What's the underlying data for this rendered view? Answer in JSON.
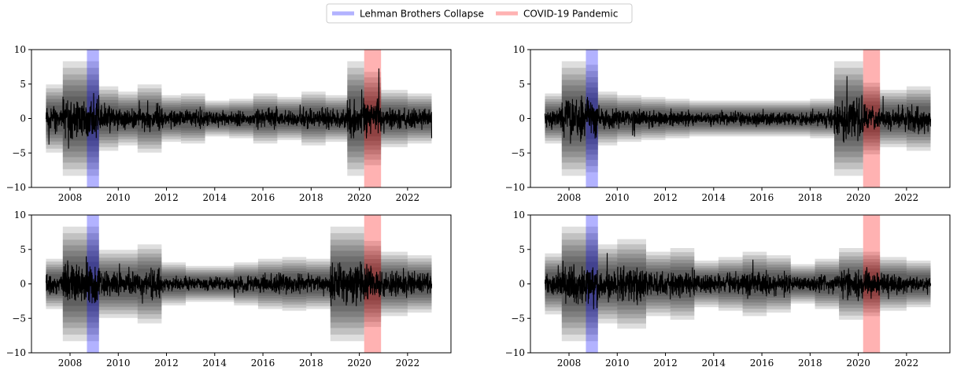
{
  "legend": {
    "placement": "top-center",
    "entries": [
      {
        "label": "Lehman Brothers Collapse",
        "color": "#0000ff",
        "alpha": 0.3
      },
      {
        "label": "COVID-19 Pandemic",
        "color": "#ff0000",
        "alpha": 0.3
      }
    ]
  },
  "chart_data": [
    {
      "type": "line",
      "panel": "top-left",
      "xlim": [
        2006.4,
        2023.8
      ],
      "ylim": [
        -10,
        10
      ],
      "xticks": [
        "2008",
        "2010",
        "2012",
        "2014",
        "2016",
        "2018",
        "2020",
        "2022"
      ],
      "yticks": [
        "10",
        "5",
        "0",
        "−5",
        "−10"
      ],
      "x_range": [
        2007.0,
        2023.0
      ],
      "grid": false,
      "events": [
        {
          "name": "Lehman Brothers Collapse",
          "start": 2008.7,
          "end": 2009.2,
          "color": "#0000ff"
        },
        {
          "name": "COVID-19 Pandemic",
          "start": 2020.2,
          "end": 2020.9,
          "color": "#ff0000"
        }
      ],
      "volatility_regimes": [
        {
          "start": 2007.0,
          "end": 2007.7,
          "scale": 1.9
        },
        {
          "start": 2007.7,
          "end": 2008.7,
          "scale": 3.2
        },
        {
          "start": 2008.7,
          "end": 2009.2,
          "scale": 3.2
        },
        {
          "start": 2009.2,
          "end": 2010.0,
          "scale": 1.8
        },
        {
          "start": 2010.0,
          "end": 2010.8,
          "scale": 1.5
        },
        {
          "start": 2010.8,
          "end": 2011.8,
          "scale": 1.9
        },
        {
          "start": 2011.8,
          "end": 2012.6,
          "scale": 1.3
        },
        {
          "start": 2012.6,
          "end": 2013.6,
          "scale": 1.4
        },
        {
          "start": 2013.6,
          "end": 2014.6,
          "scale": 1.0
        },
        {
          "start": 2014.6,
          "end": 2015.6,
          "scale": 1.1
        },
        {
          "start": 2015.6,
          "end": 2016.6,
          "scale": 1.4
        },
        {
          "start": 2016.6,
          "end": 2017.6,
          "scale": 1.2
        },
        {
          "start": 2017.6,
          "end": 2018.6,
          "scale": 1.5
        },
        {
          "start": 2018.6,
          "end": 2019.5,
          "scale": 1.3
        },
        {
          "start": 2019.5,
          "end": 2020.2,
          "scale": 3.2
        },
        {
          "start": 2020.2,
          "end": 2020.9,
          "scale": 2.6
        },
        {
          "start": 2020.9,
          "end": 2022.0,
          "scale": 1.6
        },
        {
          "start": 2022.0,
          "end": 2023.0,
          "scale": 1.4
        }
      ]
    },
    {
      "type": "line",
      "panel": "top-right",
      "xlim": [
        2006.4,
        2023.8
      ],
      "ylim": [
        -10,
        10
      ],
      "xticks": [
        "2008",
        "2010",
        "2012",
        "2014",
        "2016",
        "2018",
        "2020",
        "2022"
      ],
      "yticks": [
        "10",
        "5",
        "0",
        "−5",
        "−10"
      ],
      "x_range": [
        2007.0,
        2023.0
      ],
      "grid": false,
      "events": [
        {
          "name": "Lehman Brothers Collapse",
          "start": 2008.7,
          "end": 2009.2,
          "color": "#0000ff"
        },
        {
          "name": "COVID-19 Pandemic",
          "start": 2020.2,
          "end": 2020.9,
          "color": "#ff0000"
        }
      ],
      "volatility_regimes": [
        {
          "start": 2007.0,
          "end": 2007.7,
          "scale": 1.4
        },
        {
          "start": 2007.7,
          "end": 2008.7,
          "scale": 3.2
        },
        {
          "start": 2008.7,
          "end": 2009.2,
          "scale": 3.0
        },
        {
          "start": 2009.2,
          "end": 2010.0,
          "scale": 1.5
        },
        {
          "start": 2010.0,
          "end": 2011.0,
          "scale": 1.3
        },
        {
          "start": 2011.0,
          "end": 2012.0,
          "scale": 1.2
        },
        {
          "start": 2012.0,
          "end": 2013.0,
          "scale": 1.1
        },
        {
          "start": 2013.0,
          "end": 2014.0,
          "scale": 1.0
        },
        {
          "start": 2014.0,
          "end": 2015.0,
          "scale": 1.0
        },
        {
          "start": 2015.0,
          "end": 2016.0,
          "scale": 1.0
        },
        {
          "start": 2016.0,
          "end": 2017.0,
          "scale": 1.0
        },
        {
          "start": 2017.0,
          "end": 2018.0,
          "scale": 1.0
        },
        {
          "start": 2018.0,
          "end": 2019.0,
          "scale": 1.1
        },
        {
          "start": 2019.0,
          "end": 2020.2,
          "scale": 3.2
        },
        {
          "start": 2020.2,
          "end": 2020.9,
          "scale": 2.0
        },
        {
          "start": 2020.9,
          "end": 2022.0,
          "scale": 1.6
        },
        {
          "start": 2022.0,
          "end": 2023.0,
          "scale": 1.8
        }
      ]
    },
    {
      "type": "line",
      "panel": "bottom-left",
      "xlim": [
        2006.4,
        2023.8
      ],
      "ylim": [
        -10,
        10
      ],
      "xticks": [
        "2008",
        "2010",
        "2012",
        "2014",
        "2016",
        "2018",
        "2020",
        "2022"
      ],
      "yticks": [
        "10",
        "5",
        "0",
        "−5",
        "−10"
      ],
      "x_range": [
        2007.0,
        2023.0
      ],
      "grid": false,
      "events": [
        {
          "name": "Lehman Brothers Collapse",
          "start": 2008.7,
          "end": 2009.2,
          "color": "#0000ff"
        },
        {
          "name": "COVID-19 Pandemic",
          "start": 2020.2,
          "end": 2020.9,
          "color": "#ff0000"
        }
      ],
      "volatility_regimes": [
        {
          "start": 2007.0,
          "end": 2007.7,
          "scale": 1.4
        },
        {
          "start": 2007.7,
          "end": 2008.7,
          "scale": 3.2
        },
        {
          "start": 2008.7,
          "end": 2009.2,
          "scale": 3.2
        },
        {
          "start": 2009.2,
          "end": 2010.0,
          "scale": 1.9
        },
        {
          "start": 2010.0,
          "end": 2010.8,
          "scale": 1.9
        },
        {
          "start": 2010.8,
          "end": 2011.8,
          "scale": 2.2
        },
        {
          "start": 2011.8,
          "end": 2012.8,
          "scale": 1.2
        },
        {
          "start": 2012.8,
          "end": 2013.8,
          "scale": 1.0
        },
        {
          "start": 2013.8,
          "end": 2014.8,
          "scale": 1.0
        },
        {
          "start": 2014.8,
          "end": 2015.8,
          "scale": 1.2
        },
        {
          "start": 2015.8,
          "end": 2016.8,
          "scale": 1.4
        },
        {
          "start": 2016.8,
          "end": 2017.8,
          "scale": 1.5
        },
        {
          "start": 2017.8,
          "end": 2018.8,
          "scale": 1.4
        },
        {
          "start": 2018.8,
          "end": 2020.2,
          "scale": 3.2
        },
        {
          "start": 2020.2,
          "end": 2020.9,
          "scale": 2.4
        },
        {
          "start": 2020.9,
          "end": 2022.0,
          "scale": 1.8
        },
        {
          "start": 2022.0,
          "end": 2023.0,
          "scale": 1.6
        }
      ]
    },
    {
      "type": "line",
      "panel": "bottom-right",
      "xlim": [
        2006.4,
        2023.8
      ],
      "ylim": [
        -10,
        10
      ],
      "xticks": [
        "2008",
        "2010",
        "2012",
        "2014",
        "2016",
        "2018",
        "2020",
        "2022"
      ],
      "yticks": [
        "10",
        "5",
        "0",
        "−5",
        "−10"
      ],
      "x_range": [
        2007.0,
        2023.0
      ],
      "grid": false,
      "events": [
        {
          "name": "Lehman Brothers Collapse",
          "start": 2008.7,
          "end": 2009.2,
          "color": "#0000ff"
        },
        {
          "name": "COVID-19 Pandemic",
          "start": 2020.2,
          "end": 2020.9,
          "color": "#ff0000"
        }
      ],
      "volatility_regimes": [
        {
          "start": 2007.0,
          "end": 2007.7,
          "scale": 1.7
        },
        {
          "start": 2007.7,
          "end": 2008.7,
          "scale": 3.2
        },
        {
          "start": 2008.7,
          "end": 2009.2,
          "scale": 3.2
        },
        {
          "start": 2009.2,
          "end": 2010.0,
          "scale": 2.2
        },
        {
          "start": 2010.0,
          "end": 2011.2,
          "scale": 2.5
        },
        {
          "start": 2011.2,
          "end": 2012.2,
          "scale": 1.8
        },
        {
          "start": 2012.2,
          "end": 2013.2,
          "scale": 2.0
        },
        {
          "start": 2013.2,
          "end": 2014.2,
          "scale": 1.3
        },
        {
          "start": 2014.2,
          "end": 2015.2,
          "scale": 1.5
        },
        {
          "start": 2015.2,
          "end": 2016.2,
          "scale": 1.8
        },
        {
          "start": 2016.2,
          "end": 2017.2,
          "scale": 1.6
        },
        {
          "start": 2017.2,
          "end": 2018.2,
          "scale": 1.1
        },
        {
          "start": 2018.2,
          "end": 2019.2,
          "scale": 1.4
        },
        {
          "start": 2019.2,
          "end": 2020.2,
          "scale": 2.0
        },
        {
          "start": 2020.2,
          "end": 2020.9,
          "scale": 1.8
        },
        {
          "start": 2020.9,
          "end": 2022.0,
          "scale": 1.5
        },
        {
          "start": 2022.0,
          "end": 2023.0,
          "scale": 1.3
        }
      ]
    }
  ]
}
